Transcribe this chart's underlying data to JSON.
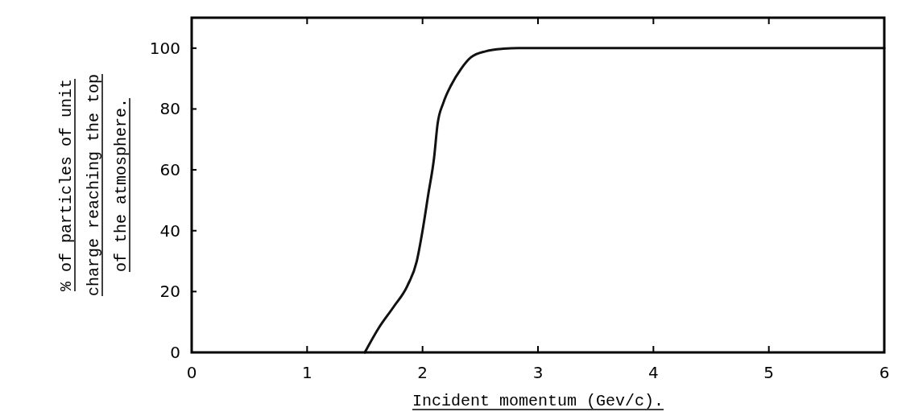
{
  "chart_data": {
    "type": "line",
    "xlabel": "Incident momentum (Gev/c).",
    "ylabel": "% of particles of unit\ncharge reaching the top\nof the atmosphere.",
    "xlim": [
      0,
      6
    ],
    "ylim": [
      0,
      110
    ],
    "xticks": [
      0,
      1,
      2,
      3,
      4,
      5,
      6
    ],
    "yticks": [
      0,
      20,
      40,
      60,
      80,
      100
    ],
    "grid": false,
    "line_style": "solid",
    "series": [
      {
        "color": "#111111",
        "x": [
          1.5,
          1.62,
          1.75,
          1.87,
          1.95,
          2.0,
          2.05,
          2.1,
          2.13,
          2.18,
          2.25,
          2.33,
          2.42,
          2.55,
          2.7,
          2.83,
          3.5,
          4.5,
          6
        ],
        "values": [
          0,
          8,
          15,
          22,
          30,
          40,
          52,
          64,
          75,
          82,
          88,
          93,
          97,
          99,
          99.8,
          100,
          100,
          100,
          100
        ]
      }
    ]
  }
}
